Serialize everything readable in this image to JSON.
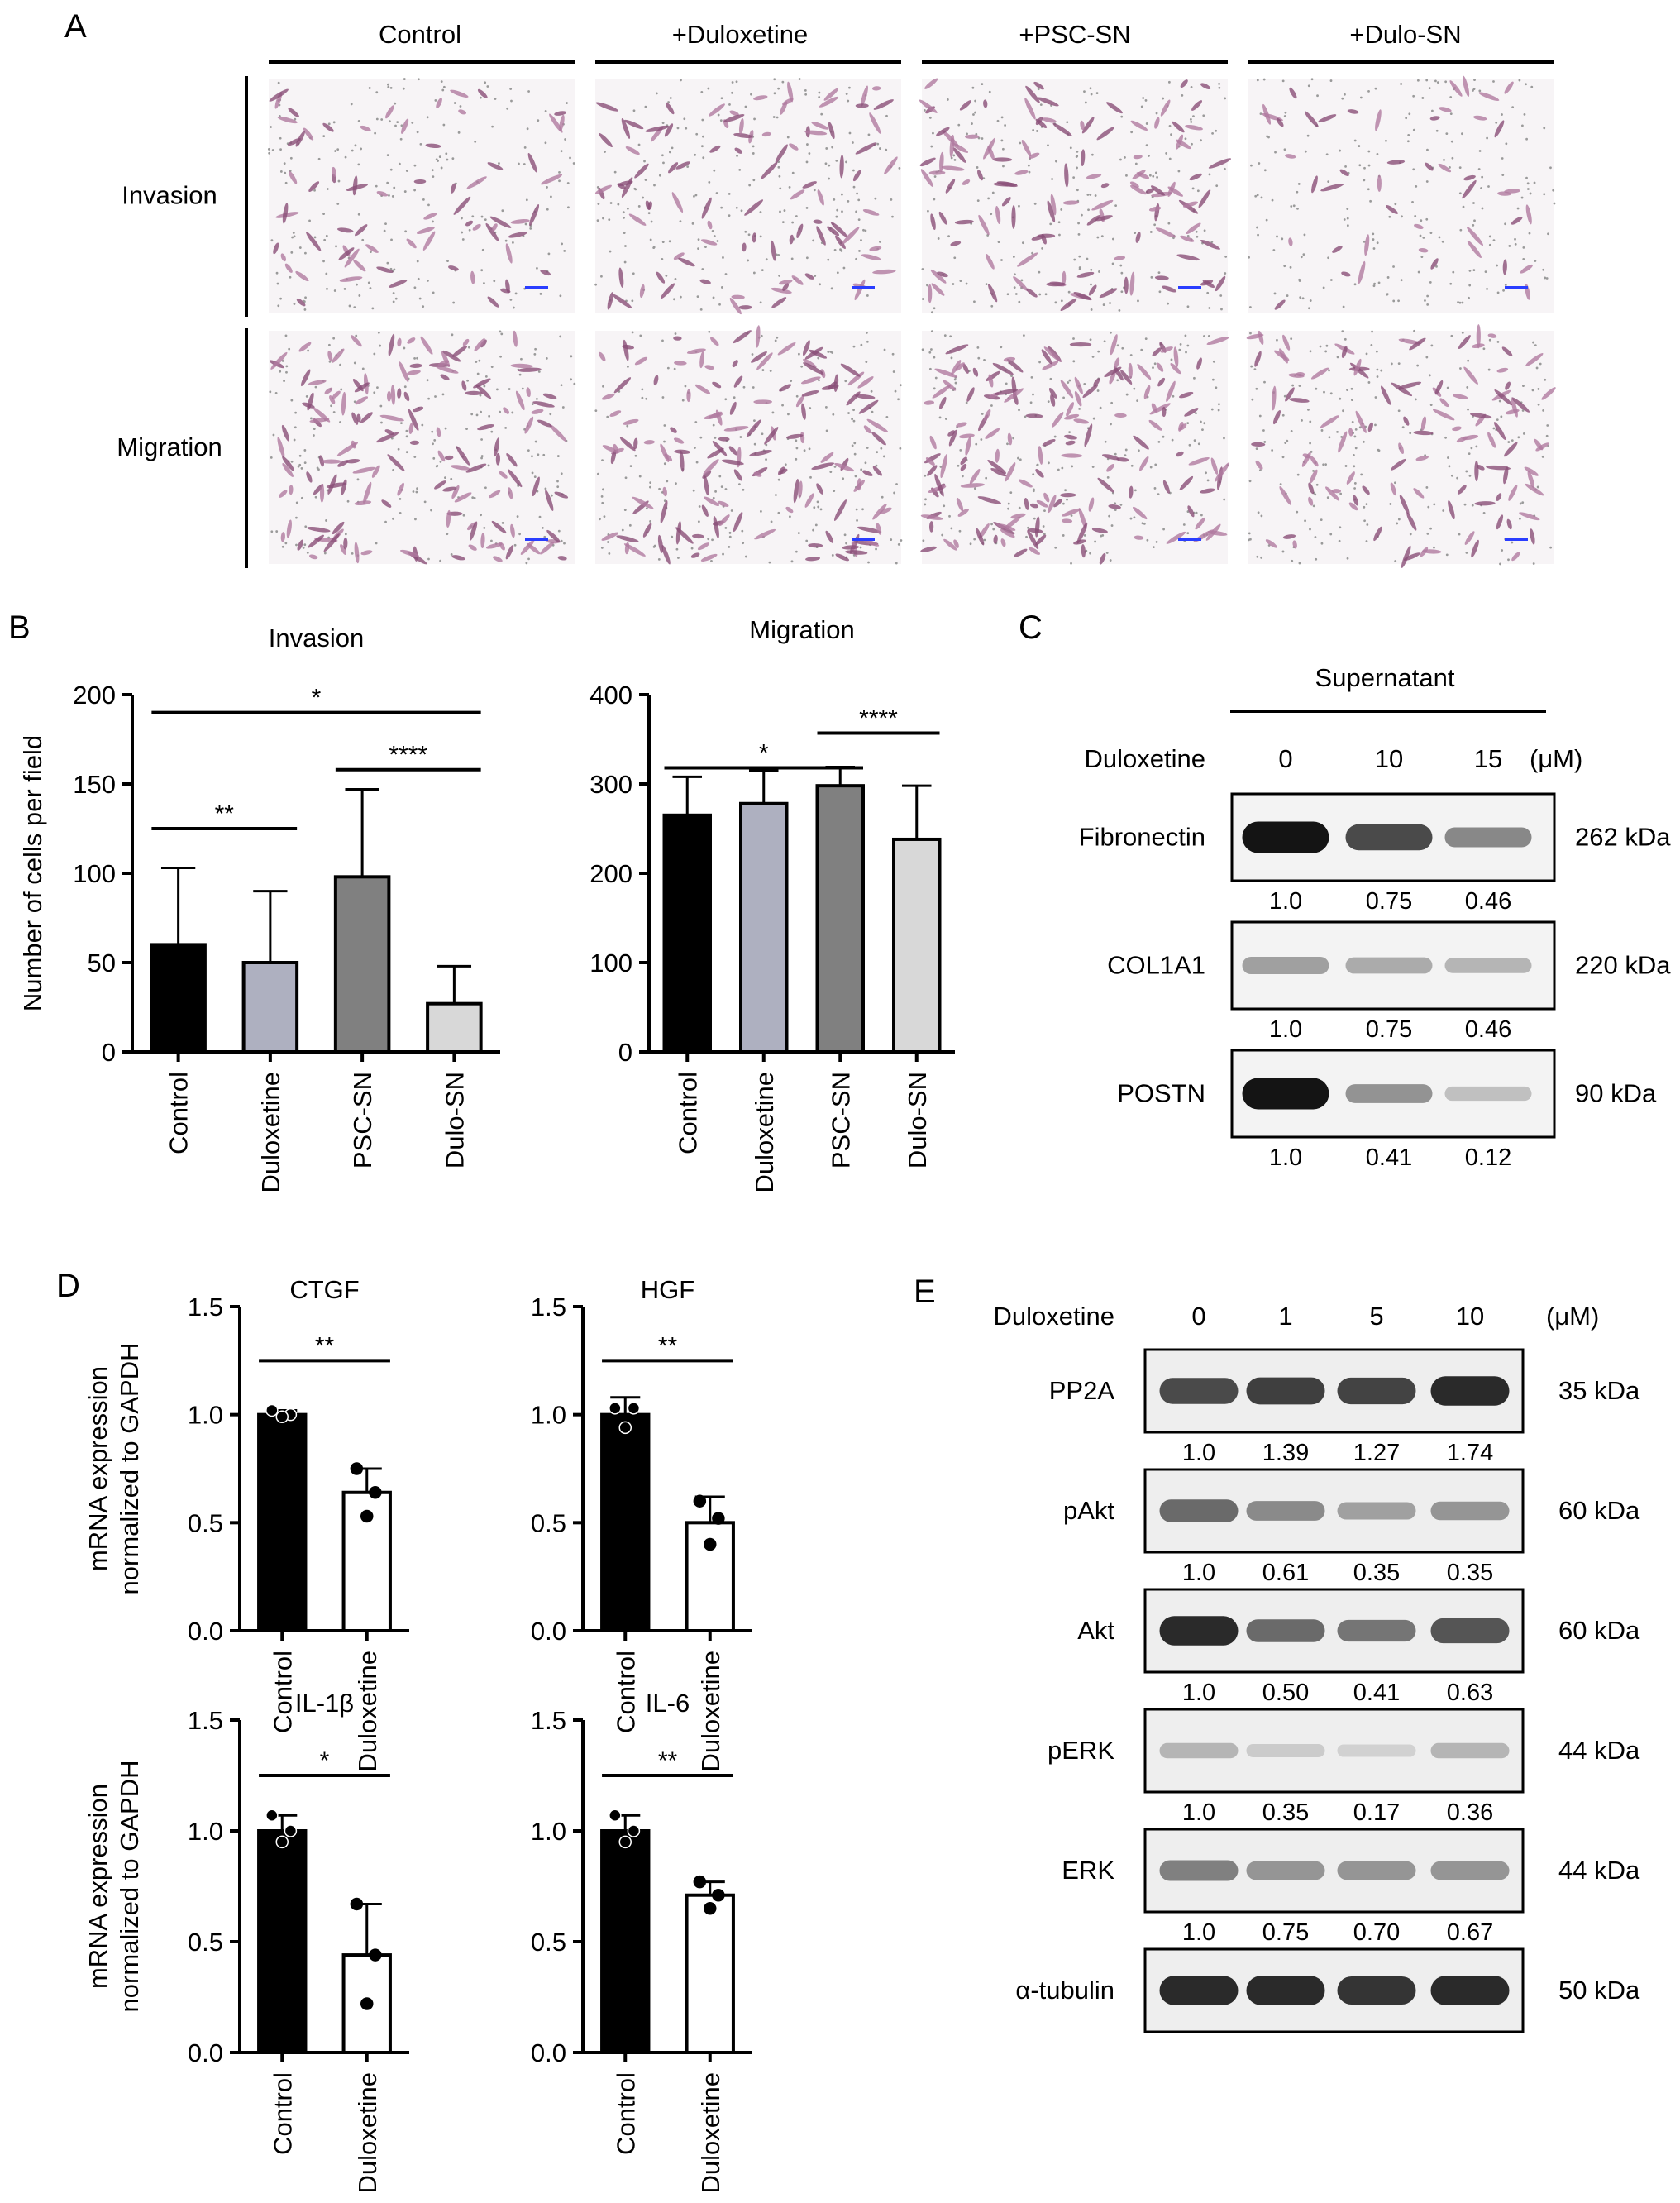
{
  "figure": {
    "panel_letters": [
      "A",
      "B",
      "C",
      "D",
      "E"
    ]
  },
  "panel_a": {
    "columns": [
      "Control",
      "+Duloxetine",
      "+PSC-SN",
      "+Dulo-SN"
    ],
    "rows": [
      "Invasion",
      "Migration"
    ],
    "density": [
      [
        70,
        95,
        120,
        45
      ],
      [
        150,
        140,
        165,
        110
      ]
    ]
  },
  "panel_c": {
    "header": "Supernatant",
    "treatment_label": "Duloxetine",
    "doses": [
      "0",
      "10",
      "15"
    ],
    "unit": "(μM)",
    "blots": [
      {
        "name": "Fibronectin",
        "size": "262 kDa",
        "quant": [
          "1.0",
          "0.75",
          "0.46"
        ],
        "intensity": [
          1.0,
          0.75,
          0.46
        ]
      },
      {
        "name": "COL1A1",
        "size": "220 kDa",
        "quant": [
          "1.0",
          "0.75",
          "0.46"
        ],
        "intensity": [
          0.35,
          0.3,
          0.25
        ]
      },
      {
        "name": "POSTN",
        "size": "90 kDa",
        "quant": [
          "1.0",
          "0.41",
          "0.12"
        ],
        "intensity": [
          1.0,
          0.41,
          0.2
        ]
      }
    ]
  },
  "panel_e": {
    "treatment_label": "Duloxetine",
    "doses": [
      "0",
      "1",
      "5",
      "10"
    ],
    "unit": "(μM)",
    "blots": [
      {
        "name": "PP2A",
        "size": "35 kDa",
        "quant": [
          "1.0",
          "1.39",
          "1.27",
          "1.74"
        ],
        "intensity": [
          0.75,
          0.8,
          0.78,
          0.9
        ]
      },
      {
        "name": "pAkt",
        "size": "60 kDa",
        "quant": [
          "1.0",
          "0.61",
          "0.35",
          "0.35"
        ],
        "intensity": [
          0.6,
          0.45,
          0.35,
          0.4
        ]
      },
      {
        "name": "Akt",
        "size": "60 kDa",
        "quant": [
          "1.0",
          "0.50",
          "0.41",
          "0.63"
        ],
        "intensity": [
          0.9,
          0.6,
          0.55,
          0.7
        ]
      },
      {
        "name": "pERK",
        "size": "44 kDa",
        "quant": [
          "1.0",
          "0.35",
          "0.17",
          "0.36"
        ],
        "intensity": [
          0.25,
          0.15,
          0.12,
          0.25
        ]
      },
      {
        "name": "ERK",
        "size": "44 kDa",
        "quant": [
          "1.0",
          "0.75",
          "0.70",
          "0.67"
        ],
        "intensity": [
          0.5,
          0.4,
          0.4,
          0.4
        ]
      },
      {
        "name": "α-tubulin",
        "size": "50 kDa",
        "quant": [],
        "intensity": [
          0.9,
          0.9,
          0.85,
          0.9
        ]
      }
    ]
  },
  "chart_data": [
    {
      "panel": "B",
      "type": "bar",
      "title": "Invasion",
      "ylabel": "Number of cells per field",
      "xlabel": "",
      "categories": [
        "Control",
        "Duloxetine",
        "PSC-SN",
        "Dulo-SN"
      ],
      "values": [
        60,
        50,
        98,
        27
      ],
      "errors": [
        43,
        40,
        49,
        21
      ],
      "colors": [
        "#000000",
        "#aeb0c0",
        "#808080",
        "#d8d8d8"
      ],
      "ylim": [
        0,
        200
      ],
      "yticks": [
        "0",
        "50",
        "100",
        "150",
        "200"
      ],
      "significance": [
        {
          "from": 0,
          "to": 3,
          "label": "*",
          "y": 190
        },
        {
          "from": 2,
          "to": 3,
          "label": "****",
          "y": 158
        },
        {
          "from": 0,
          "to": 1,
          "label": "**",
          "y": 125
        }
      ]
    },
    {
      "panel": "B",
      "type": "bar",
      "title": "Migration",
      "ylabel": "",
      "xlabel": "",
      "categories": [
        "Control",
        "Duloxetine",
        "PSC-SN",
        "Dulo-SN"
      ],
      "values": [
        265,
        278,
        298,
        238
      ],
      "errors": [
        43,
        37,
        21,
        60
      ],
      "colors": [
        "#000000",
        "#aeb0c0",
        "#808080",
        "#d8d8d8"
      ],
      "ylim": [
        0,
        400
      ],
      "yticks": [
        "0",
        "100",
        "200",
        "300",
        "400"
      ],
      "significance": [
        {
          "from": 0,
          "to": 2,
          "label": "*",
          "y": 318
        },
        {
          "from": 2,
          "to": 3,
          "label": "****",
          "y": 357
        }
      ]
    },
    {
      "panel": "D",
      "type": "bar",
      "title": "CTGF",
      "ylabel": "mRNA expression\nnormalized to GAPDH",
      "xlabel": "",
      "categories": [
        "Control",
        "Duloxetine"
      ],
      "values": [
        1.0,
        0.64
      ],
      "errors": [
        0.02,
        0.11
      ],
      "points": [
        [
          1.02,
          1.0,
          0.99
        ],
        [
          0.75,
          0.64,
          0.53
        ]
      ],
      "colors": [
        "#000000",
        "#ffffff"
      ],
      "ylim": [
        0,
        1.5
      ],
      "yticks": [
        "0.0",
        "0.5",
        "1.0",
        "1.5"
      ],
      "significance": [
        {
          "from": 0,
          "to": 1,
          "label": "**",
          "y": 1.25
        }
      ]
    },
    {
      "panel": "D",
      "type": "bar",
      "title": "HGF",
      "ylabel": "",
      "xlabel": "",
      "categories": [
        "Control",
        "Duloxetine"
      ],
      "values": [
        1.0,
        0.5
      ],
      "errors": [
        0.08,
        0.12
      ],
      "points": [
        [
          1.03,
          1.03,
          0.94
        ],
        [
          0.6,
          0.52,
          0.4
        ]
      ],
      "colors": [
        "#000000",
        "#ffffff"
      ],
      "ylim": [
        0,
        1.5
      ],
      "yticks": [
        "0.0",
        "0.5",
        "1.0",
        "1.5"
      ],
      "significance": [
        {
          "from": 0,
          "to": 1,
          "label": "**",
          "y": 1.25
        }
      ]
    },
    {
      "panel": "D",
      "type": "bar",
      "title": "IL-1β",
      "ylabel": "mRNA expression\nnormalized to GAPDH",
      "xlabel": "",
      "categories": [
        "Control",
        "Duloxetine"
      ],
      "values": [
        1.0,
        0.44
      ],
      "errors": [
        0.07,
        0.23
      ],
      "points": [
        [
          1.07,
          1.0,
          0.95
        ],
        [
          0.67,
          0.44,
          0.22
        ]
      ],
      "colors": [
        "#000000",
        "#ffffff"
      ],
      "ylim": [
        0,
        1.5
      ],
      "yticks": [
        "0.0",
        "0.5",
        "1.0",
        "1.5"
      ],
      "significance": [
        {
          "from": 0,
          "to": 1,
          "label": "*",
          "y": 1.25
        }
      ]
    },
    {
      "panel": "D",
      "type": "bar",
      "title": "IL-6",
      "ylabel": "",
      "xlabel": "",
      "categories": [
        "Control",
        "Duloxetine"
      ],
      "values": [
        1.0,
        0.71
      ],
      "errors": [
        0.07,
        0.06
      ],
      "points": [
        [
          1.07,
          1.0,
          0.95
        ],
        [
          0.77,
          0.71,
          0.65
        ]
      ],
      "colors": [
        "#000000",
        "#ffffff"
      ],
      "ylim": [
        0,
        1.5
      ],
      "yticks": [
        "0.0",
        "0.5",
        "1.0",
        "1.5"
      ],
      "significance": [
        {
          "from": 0,
          "to": 1,
          "label": "**",
          "y": 1.25
        }
      ]
    }
  ]
}
